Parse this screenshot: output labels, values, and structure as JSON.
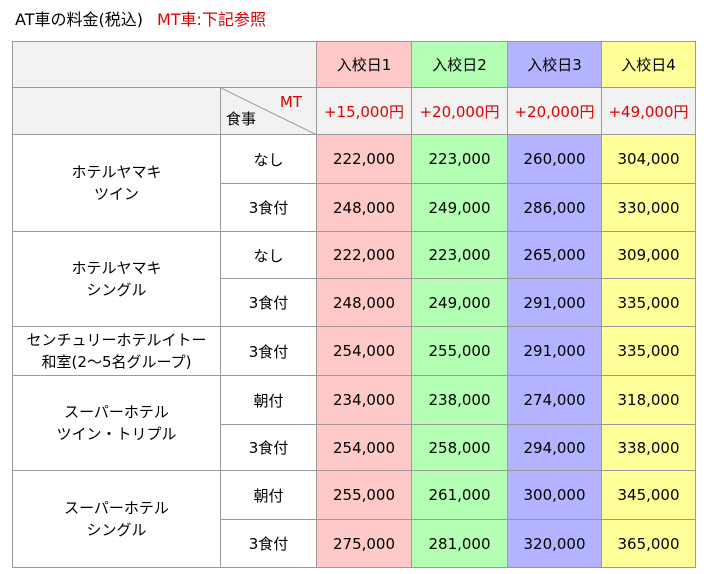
{
  "heading": {
    "main": "AT車の料金(税込)",
    "note": "MT車:下記参照"
  },
  "columns": [
    {
      "label": "入校日1",
      "mt_surcharge": "+15,000円",
      "color": "#ffc9c9"
    },
    {
      "label": "入校日2",
      "mt_surcharge": "+20,000円",
      "color": "#b3ffb3"
    },
    {
      "label": "入校日3",
      "mt_surcharge": "+20,000円",
      "color": "#b3b3ff"
    },
    {
      "label": "入校日4",
      "mt_surcharge": "+49,000円",
      "color": "#ffff99"
    }
  ],
  "corner": {
    "mt": "MT",
    "meal": "食事"
  },
  "groups": [
    {
      "hotel_line1": "ホテルヤマキ",
      "hotel_line2": "ツイン",
      "rows": [
        {
          "meal": "なし",
          "prices": [
            "222,000",
            "223,000",
            "260,000",
            "304,000"
          ]
        },
        {
          "meal": "3食付",
          "prices": [
            "248,000",
            "249,000",
            "286,000",
            "330,000"
          ]
        }
      ]
    },
    {
      "hotel_line1": "ホテルヤマキ",
      "hotel_line2": "シングル",
      "rows": [
        {
          "meal": "なし",
          "prices": [
            "222,000",
            "223,000",
            "265,000",
            "309,000"
          ]
        },
        {
          "meal": "3食付",
          "prices": [
            "248,000",
            "249,000",
            "291,000",
            "335,000"
          ]
        }
      ]
    },
    {
      "hotel_line1": "センチュリーホテルイトー",
      "hotel_line2": "和室(2〜5名グループ)",
      "rows": [
        {
          "meal": "3食付",
          "prices": [
            "254,000",
            "255,000",
            "291,000",
            "335,000"
          ]
        }
      ]
    },
    {
      "hotel_line1": "スーパーホテル",
      "hotel_line2": "ツイン・トリプル",
      "rows": [
        {
          "meal": "朝付",
          "prices": [
            "234,000",
            "238,000",
            "274,000",
            "318,000"
          ]
        },
        {
          "meal": "3食付",
          "prices": [
            "254,000",
            "258,000",
            "294,000",
            "338,000"
          ]
        }
      ]
    },
    {
      "hotel_line1": "スーパーホテル",
      "hotel_line2": "シングル",
      "rows": [
        {
          "meal": "朝付",
          "prices": [
            "255,000",
            "261,000",
            "300,000",
            "345,000"
          ]
        },
        {
          "meal": "3食付",
          "prices": [
            "275,000",
            "281,000",
            "320,000",
            "365,000"
          ]
        }
      ]
    }
  ]
}
